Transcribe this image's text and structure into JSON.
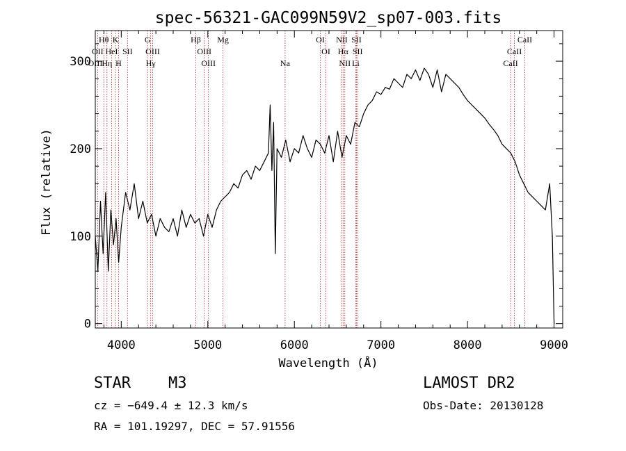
{
  "chart_data": {
    "type": "line",
    "title": "spec-56321-GAC099N59V2_sp07-003.fits",
    "xlabel": "Wavelength (Å)",
    "ylabel": "Flux (relative)",
    "xlim": [
      3700,
      9100
    ],
    "ylim": [
      -5,
      335
    ],
    "xticks": [
      "4000",
      "5000",
      "6000",
      "7000",
      "8000",
      "9000"
    ],
    "yticks": [
      "0",
      "100",
      "200",
      "300"
    ],
    "xtick_values": [
      4000,
      5000,
      6000,
      7000,
      8000,
      9000
    ],
    "ytick_values": [
      0,
      100,
      200,
      300
    ],
    "grid": false,
    "series": [
      {
        "color": "#000000",
        "x": [
          3700,
          3730,
          3760,
          3790,
          3820,
          3850,
          3880,
          3910,
          3940,
          3970,
          4000,
          4050,
          4100,
          4150,
          4200,
          4250,
          4300,
          4350,
          4400,
          4450,
          4500,
          4550,
          4600,
          4650,
          4700,
          4750,
          4800,
          4850,
          4900,
          4950,
          5000,
          5050,
          5100,
          5150,
          5200,
          5250,
          5300,
          5350,
          5400,
          5450,
          5500,
          5550,
          5600,
          5650,
          5700,
          5720,
          5740,
          5760,
          5780,
          5800,
          5850,
          5900,
          5950,
          6000,
          6050,
          6100,
          6150,
          6200,
          6250,
          6300,
          6350,
          6400,
          6450,
          6500,
          6550,
          6600,
          6650,
          6700,
          6750,
          6800,
          6850,
          6900,
          6950,
          7000,
          7050,
          7100,
          7150,
          7200,
          7250,
          7300,
          7350,
          7400,
          7450,
          7500,
          7550,
          7600,
          7650,
          7700,
          7750,
          7800,
          7850,
          7900,
          7950,
          8000,
          8050,
          8100,
          8150,
          8200,
          8250,
          8300,
          8350,
          8400,
          8450,
          8500,
          8550,
          8600,
          8650,
          8700,
          8750,
          8800,
          8850,
          8900,
          8950,
          8980,
          9000
        ],
        "y": [
          100,
          60,
          140,
          80,
          150,
          60,
          130,
          90,
          120,
          70,
          110,
          150,
          130,
          160,
          120,
          140,
          115,
          125,
          100,
          120,
          110,
          105,
          120,
          100,
          130,
          110,
          125,
          115,
          120,
          100,
          125,
          110,
          130,
          140,
          145,
          150,
          160,
          155,
          170,
          175,
          165,
          180,
          175,
          185,
          195,
          250,
          175,
          230,
          80,
          200,
          190,
          210,
          185,
          200,
          195,
          215,
          200,
          190,
          210,
          205,
          195,
          215,
          185,
          220,
          190,
          215,
          205,
          230,
          225,
          240,
          250,
          255,
          265,
          262,
          270,
          268,
          280,
          275,
          270,
          285,
          280,
          290,
          278,
          292,
          285,
          270,
          290,
          265,
          285,
          280,
          275,
          270,
          262,
          255,
          250,
          245,
          240,
          235,
          228,
          222,
          215,
          205,
          200,
          195,
          185,
          170,
          160,
          150,
          145,
          140,
          135,
          130,
          160,
          100,
          0
        ]
      }
    ],
    "lines": [
      {
        "label": "Hθ",
        "x": 3798,
        "row": 0
      },
      {
        "label": "K",
        "x": 3934,
        "row": 0
      },
      {
        "label": "G",
        "x": 4304,
        "row": 0
      },
      {
        "label": "Hβ",
        "x": 4861,
        "row": 0
      },
      {
        "label": "Mg",
        "x": 5175,
        "row": 0
      },
      {
        "label": "OI",
        "x": 6300,
        "row": 0
      },
      {
        "label": "NII",
        "x": 6548,
        "row": 0
      },
      {
        "label": "SII",
        "x": 6717,
        "row": 0
      },
      {
        "label": "CaII",
        "x": 8662,
        "row": 0
      },
      {
        "label": "OII",
        "x": 3727,
        "row": 1
      },
      {
        "label": "HeI",
        "x": 3889,
        "row": 1
      },
      {
        "label": "SII",
        "x": 4072,
        "row": 1
      },
      {
        "label": "OIII",
        "x": 4363,
        "row": 1
      },
      {
        "label": "OIII",
        "x": 4959,
        "row": 1
      },
      {
        "label": "OI",
        "x": 6364,
        "row": 1
      },
      {
        "label": "Hα",
        "x": 6563,
        "row": 1
      },
      {
        "label": "SII",
        "x": 6731,
        "row": 1
      },
      {
        "label": "CaII",
        "x": 8542,
        "row": 1
      },
      {
        "label": "OIII",
        "x": 3700,
        "row": 2
      },
      {
        "label": "Hη",
        "x": 3835,
        "row": 2
      },
      {
        "label": "H",
        "x": 3969,
        "row": 2
      },
      {
        "label": "Hγ",
        "x": 4340,
        "row": 2
      },
      {
        "label": "OIII",
        "x": 5007,
        "row": 2
      },
      {
        "label": "Na",
        "x": 5893,
        "row": 2
      },
      {
        "label": "NII",
        "x": 6583,
        "row": 2
      },
      {
        "label": "Li",
        "x": 6708,
        "row": 2
      },
      {
        "label": "CaII",
        "x": 8498,
        "row": 2
      }
    ]
  },
  "info": {
    "object_type": "STAR",
    "subclass": "M3",
    "survey": "LAMOST DR2",
    "cz": "cz = −649.4 ± 12.3 km/s",
    "obs_date": "Obs-Date: 20130128",
    "coords": "RA = 101.19297, DEC =  57.91556"
  }
}
